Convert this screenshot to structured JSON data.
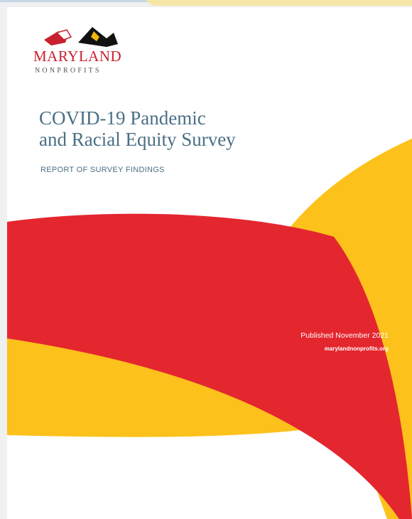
{
  "logo": {
    "name": "MARYLAND",
    "tagline": "NONPROFITS"
  },
  "title": {
    "line1": "COVID-19 Pandemic",
    "line2": "and Racial Equity Survey"
  },
  "subtitle": "REPORT OF SURVEY FINDINGS",
  "published": "Published November 2021",
  "website": "marylandnonprofits.org"
}
